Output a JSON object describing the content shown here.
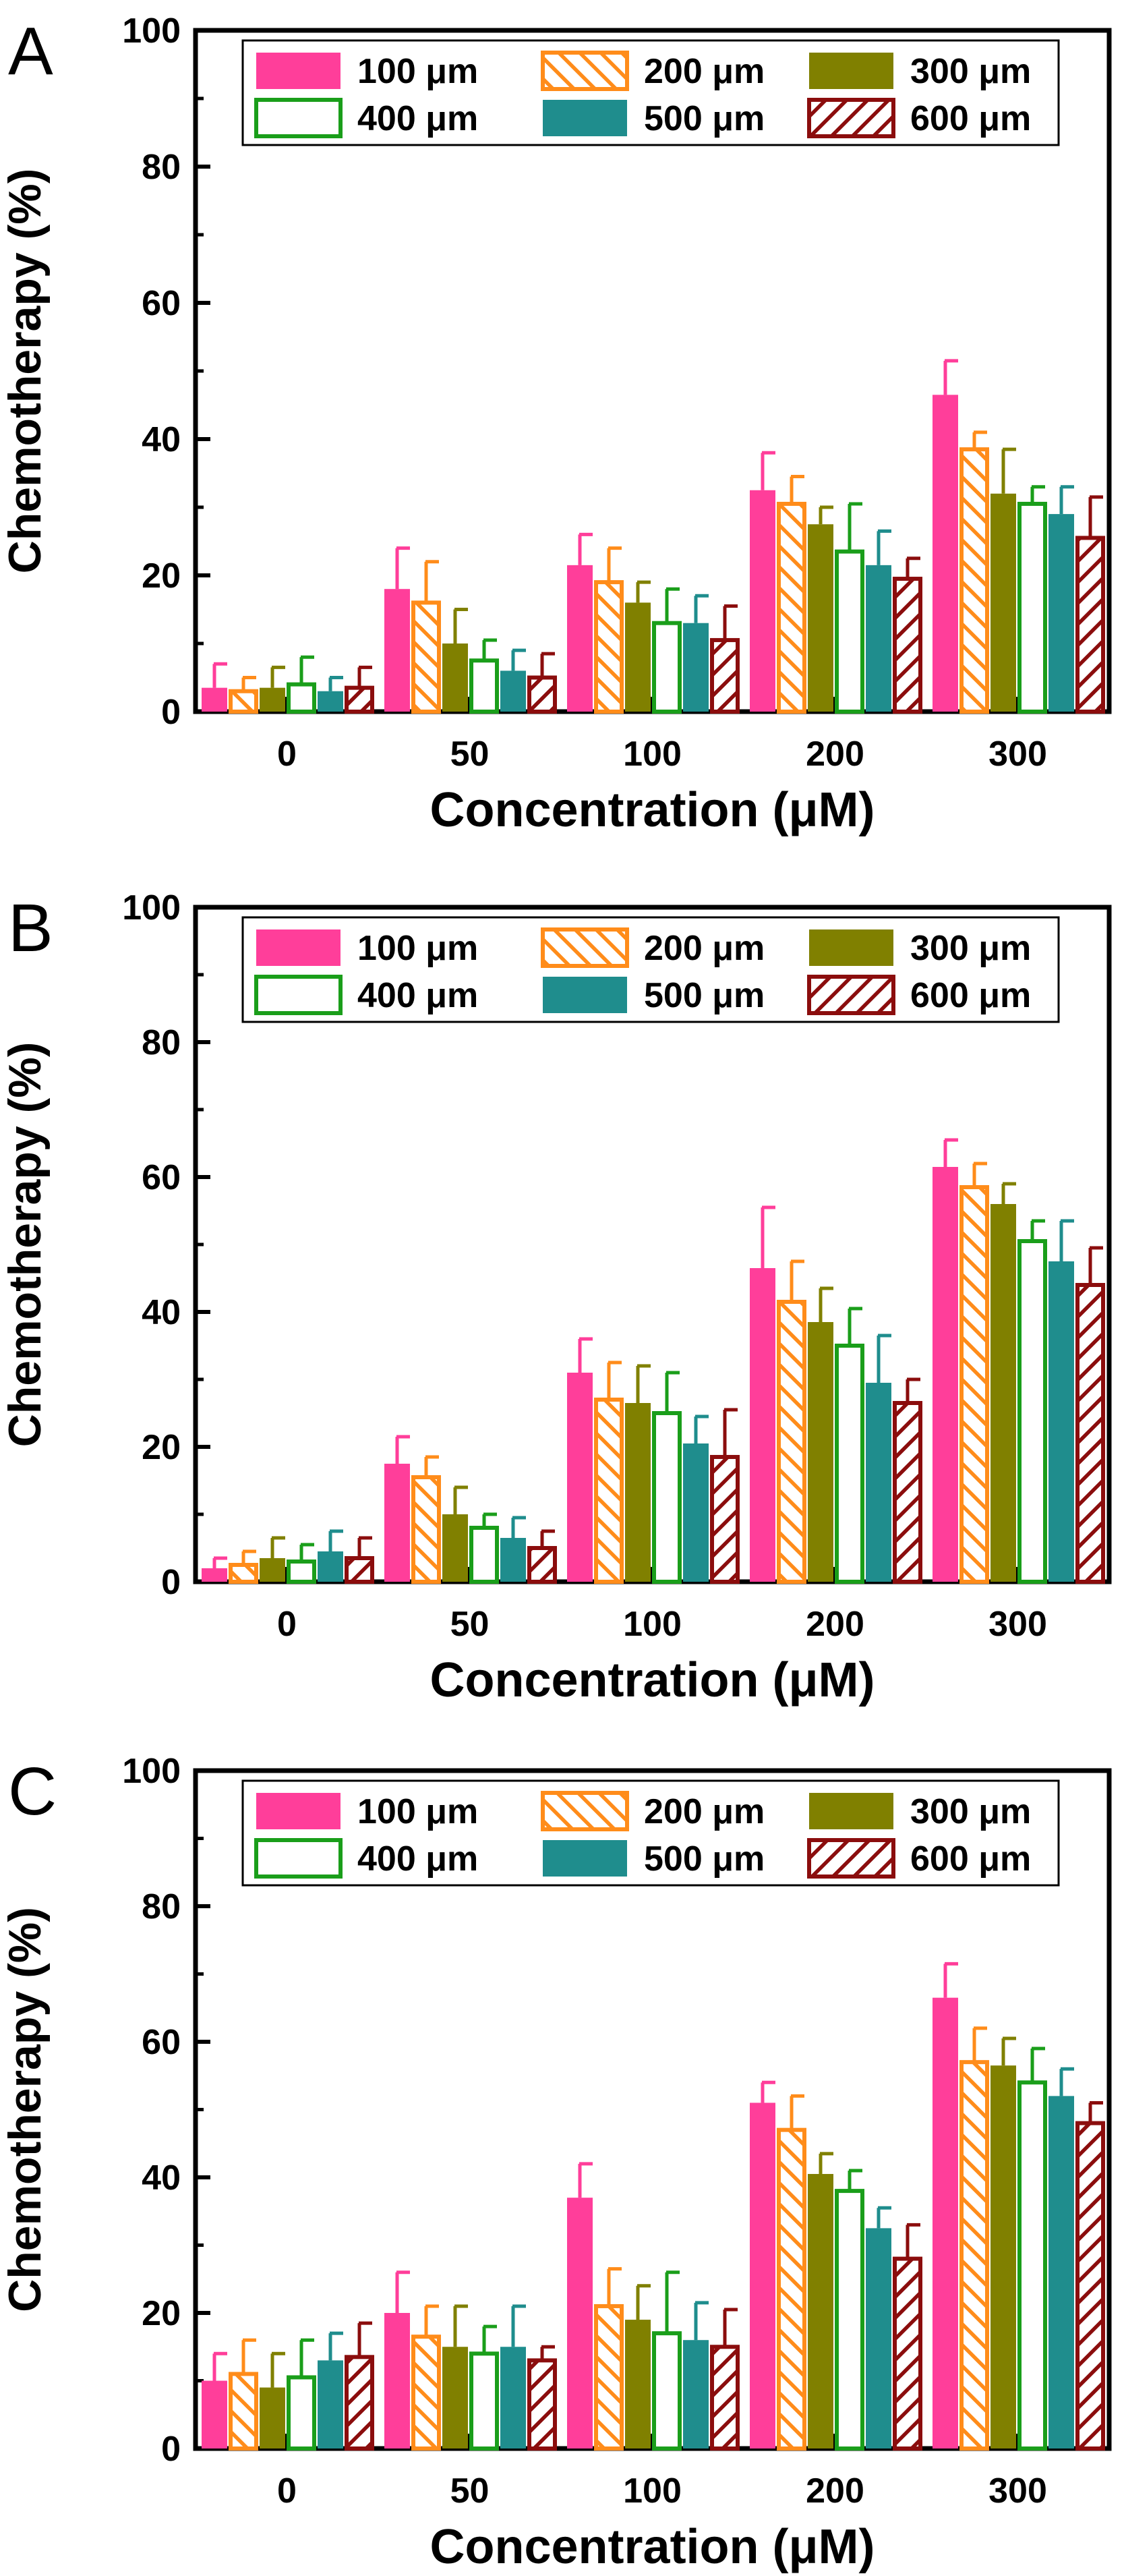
{
  "chart_data": [
    {
      "type": "bar",
      "panel_label": "A",
      "xlabel": "Concentration (μM)",
      "ylabel": "Chemotherapy (%)",
      "ylim": [
        0,
        100
      ],
      "yticks": [
        0,
        20,
        40,
        60,
        80,
        100
      ],
      "grid": false,
      "legend_position": "top",
      "categories": [
        "0",
        "50",
        "100",
        "200",
        "300"
      ],
      "series": [
        {
          "name": "100 μm",
          "values": [
            3.5,
            18,
            21.5,
            32.5,
            46.5
          ],
          "errors": [
            3.5,
            6,
            4.5,
            5.5,
            5
          ]
        },
        {
          "name": "200 μm",
          "values": [
            3,
            16,
            19,
            30.5,
            38.5
          ],
          "errors": [
            2,
            6,
            5,
            4,
            2.5
          ]
        },
        {
          "name": "300 μm",
          "values": [
            3.5,
            10,
            16,
            27.5,
            32
          ],
          "errors": [
            3,
            5,
            3,
            2.5,
            6.5
          ]
        },
        {
          "name": "400 μm",
          "values": [
            4,
            7.5,
            13,
            23.5,
            30.5
          ],
          "errors": [
            4,
            3,
            5,
            7,
            2.5
          ]
        },
        {
          "name": "500 μm",
          "values": [
            3,
            6,
            13,
            21.5,
            29
          ],
          "errors": [
            2,
            3,
            4,
            5,
            4
          ]
        },
        {
          "name": "600 μm",
          "values": [
            3.5,
            5,
            10.5,
            19.5,
            25.5
          ],
          "errors": [
            3,
            3.5,
            5,
            3,
            6
          ]
        }
      ]
    },
    {
      "type": "bar",
      "panel_label": "B",
      "xlabel": "Concentration (μM)",
      "ylabel": "Chemotherapy (%)",
      "ylim": [
        0,
        100
      ],
      "yticks": [
        0,
        20,
        40,
        60,
        80,
        100
      ],
      "grid": false,
      "legend_position": "top",
      "categories": [
        "0",
        "50",
        "100",
        "200",
        "300"
      ],
      "series": [
        {
          "name": "100 μm",
          "values": [
            2,
            17.5,
            31,
            46.5,
            61.5
          ],
          "errors": [
            1.5,
            4,
            5,
            9,
            4
          ]
        },
        {
          "name": "200 μm",
          "values": [
            2.5,
            15.5,
            27,
            41.5,
            58.5
          ],
          "errors": [
            2,
            3,
            5.5,
            6,
            3.5
          ]
        },
        {
          "name": "300 μm",
          "values": [
            3.5,
            10,
            26.5,
            38.5,
            56
          ],
          "errors": [
            3,
            4,
            5.5,
            5,
            3
          ]
        },
        {
          "name": "400 μm",
          "values": [
            3,
            8,
            25,
            35,
            50.5
          ],
          "errors": [
            2.5,
            2,
            6,
            5.5,
            3
          ]
        },
        {
          "name": "500 μm",
          "values": [
            4.5,
            6.5,
            20.5,
            29.5,
            47.5
          ],
          "errors": [
            3,
            3,
            4,
            7,
            6
          ]
        },
        {
          "name": "600 μm",
          "values": [
            3.5,
            5,
            18.5,
            26.5,
            44
          ],
          "errors": [
            3,
            2.5,
            7,
            3.5,
            5.5
          ]
        }
      ]
    },
    {
      "type": "bar",
      "panel_label": "C",
      "xlabel": "Concentration (μM)",
      "ylabel": "Chemotherapy (%)",
      "ylim": [
        0,
        100
      ],
      "yticks": [
        0,
        20,
        40,
        60,
        80,
        100
      ],
      "grid": false,
      "legend_position": "top",
      "categories": [
        "0",
        "50",
        "100",
        "200",
        "300"
      ],
      "series": [
        {
          "name": "100 μm",
          "values": [
            10,
            20,
            37,
            51,
            66.5
          ],
          "errors": [
            4,
            6,
            5,
            3,
            5
          ]
        },
        {
          "name": "200 μm",
          "values": [
            11,
            16.5,
            21,
            47,
            57
          ],
          "errors": [
            5,
            4.5,
            5.5,
            5,
            5
          ]
        },
        {
          "name": "300 μm",
          "values": [
            9,
            15,
            19,
            40.5,
            56.5
          ],
          "errors": [
            5,
            6,
            5,
            3,
            4
          ]
        },
        {
          "name": "400 μm",
          "values": [
            10.5,
            14,
            17,
            38,
            54
          ],
          "errors": [
            5.5,
            4,
            9,
            3,
            5
          ]
        },
        {
          "name": "500 μm",
          "values": [
            13,
            15,
            16,
            32.5,
            52
          ],
          "errors": [
            4,
            6,
            5.5,
            3,
            4
          ]
        },
        {
          "name": "600 μm",
          "values": [
            13.5,
            13,
            15,
            28,
            48
          ],
          "errors": [
            5,
            2,
            5.5,
            5,
            3
          ]
        }
      ]
    }
  ],
  "series_styles": [
    {
      "pattern": "solid",
      "color": "#ff3e9a"
    },
    {
      "pattern": "hatch-back",
      "color": "#ff8c1a"
    },
    {
      "pattern": "solid",
      "color": "#808000"
    },
    {
      "pattern": "hollow",
      "color": "#1a9e1a"
    },
    {
      "pattern": "solid",
      "color": "#1f8d8d"
    },
    {
      "pattern": "hatch-forward",
      "color": "#8b0d0d"
    }
  ]
}
